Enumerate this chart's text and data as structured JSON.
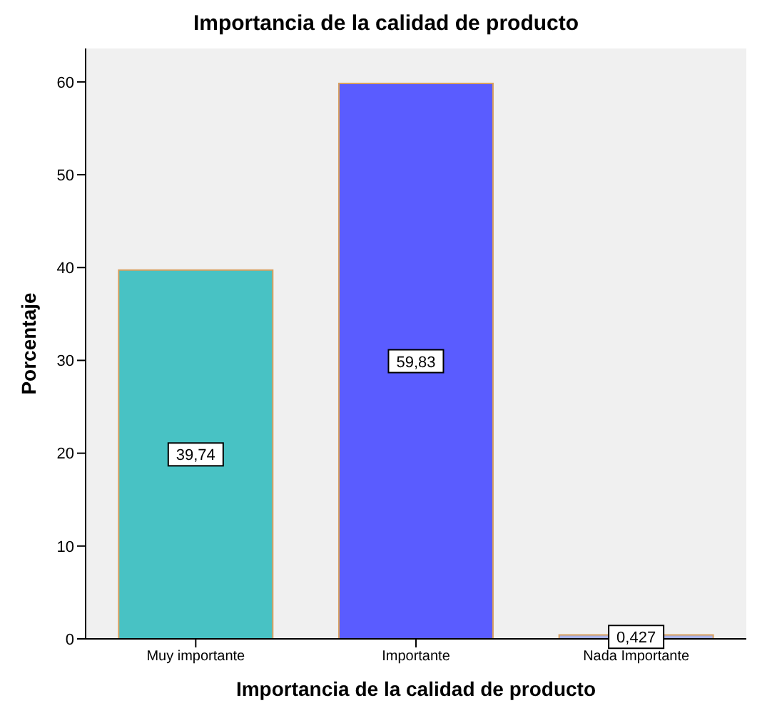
{
  "chart_data": {
    "type": "bar",
    "title": "Importancia de la calidad de producto",
    "xlabel": "Importancia de la calidad de producto",
    "ylabel": "Porcentaje",
    "categories": [
      "Muy importante",
      "Importante",
      "Nada Importante"
    ],
    "values": [
      39.74,
      59.83,
      0.427
    ],
    "colors": [
      "#48c2c4",
      "#5a5cff",
      "#a8b2e8"
    ],
    "value_labels": [
      "39,74",
      "59,83",
      "0,427"
    ],
    "ylim": [
      0,
      63.6
    ],
    "yticks": [
      0,
      10,
      20,
      30,
      40,
      50,
      60
    ],
    "grid": false
  }
}
